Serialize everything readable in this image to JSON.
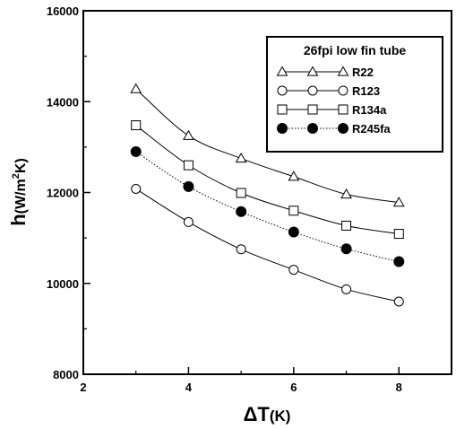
{
  "chart_data": {
    "type": "line",
    "title": "",
    "xlabel_main": "ΔT",
    "xlabel_unit": "(K)",
    "ylabel_main": "h",
    "ylabel_unit_prefix": "(W/m",
    "ylabel_unit_sup": "2",
    "ylabel_unit_suffix": "K)",
    "xlim": [
      2,
      9
    ],
    "ylim": [
      8000,
      16000
    ],
    "x_ticks": [
      2,
      4,
      6,
      8
    ],
    "y_ticks": [
      8000,
      10000,
      12000,
      14000,
      16000
    ],
    "grid": false,
    "legend_title": "26fpi low fin tube",
    "legend_position": "top-right",
    "series": [
      {
        "name": "R22",
        "marker": "triangle-open",
        "line": "solid",
        "x": [
          3,
          4,
          5,
          6,
          7,
          8
        ],
        "values": [
          14280,
          13250,
          12750,
          12350,
          11960,
          11780
        ]
      },
      {
        "name": "R123",
        "marker": "circle-open",
        "line": "solid",
        "x": [
          3,
          4,
          5,
          6,
          7,
          8
        ],
        "values": [
          12080,
          11350,
          10750,
          10300,
          9870,
          9600
        ]
      },
      {
        "name": "R134a",
        "marker": "square-open",
        "line": "solid",
        "x": [
          3,
          4,
          5,
          6,
          7,
          8
        ],
        "values": [
          13480,
          12600,
          11990,
          11600,
          11270,
          11090
        ]
      },
      {
        "name": "R245fa",
        "marker": "circle-filled",
        "line": "dotted",
        "x": [
          3,
          4,
          5,
          6,
          7,
          8
        ],
        "values": [
          12900,
          12130,
          11580,
          11130,
          10760,
          10480
        ]
      }
    ]
  }
}
